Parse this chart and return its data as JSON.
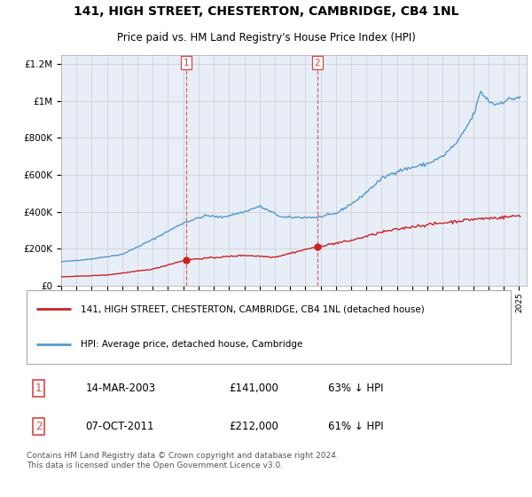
{
  "title": "141, HIGH STREET, CHESTERTON, CAMBRIDGE, CB4 1NL",
  "subtitle": "Price paid vs. HM Land Registry's House Price Index (HPI)",
  "legend_label_red": "141, HIGH STREET, CHESTERTON, CAMBRIDGE, CB4 1NL (detached house)",
  "legend_label_blue": "HPI: Average price, detached house, Cambridge",
  "footer": "Contains HM Land Registry data © Crown copyright and database right 2024.\nThis data is licensed under the Open Government Licence v3.0.",
  "sale1_date": "14-MAR-2003",
  "sale1_price": 141000,
  "sale1_label": "63% ↓ HPI",
  "sale1_year": 2003.2,
  "sale2_date": "07-OCT-2011",
  "sale2_price": 212000,
  "sale2_label": "61% ↓ HPI",
  "sale2_year": 2011.77,
  "ylim": [
    0,
    1250000
  ],
  "xlim_start": 1995,
  "xlim_end": 2025.5,
  "background_color": "#e8eef8",
  "red_color": "#cc2222",
  "blue_color": "#5599cc",
  "grid_color": "#cccccc",
  "vline_color": "#dd4444"
}
